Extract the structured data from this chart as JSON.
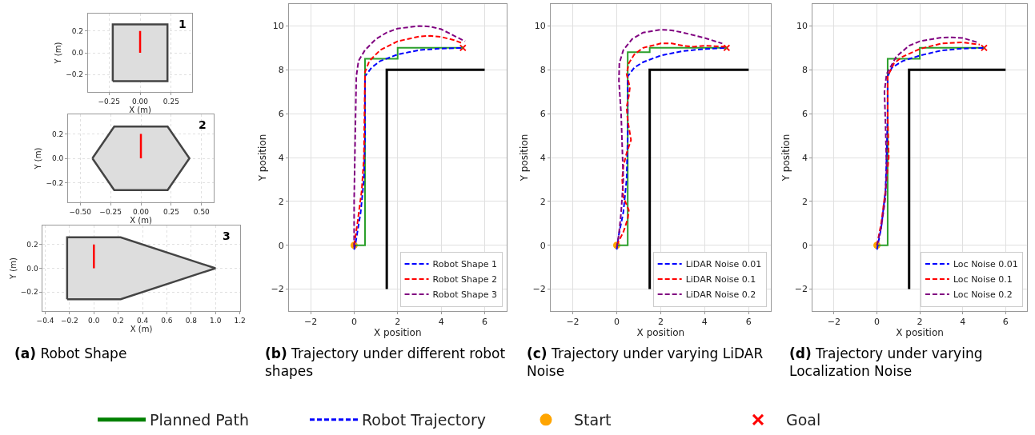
{
  "chart_data": [
    {
      "type": "area",
      "annotations": [
        "1"
      ],
      "xlabel": "X (m)",
      "ylabel": "Y (m)",
      "grid": true,
      "xlim": [
        -0.42,
        0.42
      ],
      "ylim": [
        -0.36,
        0.36
      ],
      "xticks": [
        {
          "value": -0.25,
          "label": "−0.25"
        },
        {
          "value": 0,
          "label": "0.00"
        },
        {
          "value": 0.25,
          "label": "0.25"
        }
      ],
      "yticks": [
        {
          "value": -0.2,
          "label": "−0.2"
        },
        {
          "value": 0,
          "label": "0.0"
        },
        {
          "value": 0.2,
          "label": "0.2"
        }
      ],
      "series": [
        {
          "color": "#444444",
          "x": [
            -0.22,
            -0.22,
            0.22,
            0.22,
            -0.22
          ],
          "values": [
            -0.26,
            0.26,
            0.26,
            -0.26,
            -0.26
          ]
        },
        {
          "type": "line",
          "color": "#ff0000",
          "x": [
            0,
            0
          ],
          "values": [
            0,
            0.2
          ]
        }
      ]
    },
    {
      "type": "area",
      "annotations": [
        "2"
      ],
      "xlabel": "X (m)",
      "ylabel": "Y (m)",
      "grid": true,
      "xlim": [
        -0.6,
        0.6
      ],
      "ylim": [
        -0.36,
        0.36
      ],
      "xticks": [
        {
          "value": -0.5,
          "label": "−0.50"
        },
        {
          "value": -0.25,
          "label": "−0.25"
        },
        {
          "value": 0,
          "label": "0.00"
        },
        {
          "value": 0.25,
          "label": "0.25"
        },
        {
          "value": 0.5,
          "label": "0.50"
        }
      ],
      "yticks": [
        {
          "value": -0.2,
          "label": "−0.2"
        },
        {
          "value": 0,
          "label": "0.0"
        },
        {
          "value": 0.2,
          "label": "0.2"
        }
      ],
      "series": [
        {
          "color": "#444444",
          "x": [
            -0.4,
            -0.22,
            0.22,
            0.4,
            0.22,
            -0.22,
            -0.4
          ],
          "values": [
            0,
            0.26,
            0.26,
            0,
            -0.26,
            -0.26,
            0
          ]
        },
        {
          "type": "line",
          "color": "#ff0000",
          "x": [
            0,
            0
          ],
          "values": [
            0,
            0.2
          ]
        }
      ]
    },
    {
      "type": "area",
      "title": "(a) Robot Shape",
      "annotations": [
        "3"
      ],
      "xlabel": "X (m)",
      "ylabel": "Y (m)",
      "grid": true,
      "xlim": [
        -0.42,
        1.2
      ],
      "ylim": [
        -0.36,
        0.36
      ],
      "xticks": [
        {
          "value": -0.4,
          "label": "−0.4"
        },
        {
          "value": -0.2,
          "label": "−0.2"
        },
        {
          "value": 0,
          "label": "0.0"
        },
        {
          "value": 0.2,
          "label": "0.2"
        },
        {
          "value": 0.4,
          "label": "0.4"
        },
        {
          "value": 0.6,
          "label": "0.6"
        },
        {
          "value": 0.8,
          "label": "0.8"
        },
        {
          "value": 1.0,
          "label": "1.0"
        },
        {
          "value": 1.2,
          "label": "1.2"
        }
      ],
      "yticks": [
        {
          "value": -0.2,
          "label": "−0.2"
        },
        {
          "value": 0,
          "label": "0.0"
        },
        {
          "value": 0.2,
          "label": "0.2"
        }
      ],
      "series": [
        {
          "color": "#444444",
          "x": [
            -0.22,
            -0.22,
            0.22,
            1.0,
            0.22,
            -0.22
          ],
          "values": [
            -0.26,
            0.26,
            0.26,
            0,
            -0.26,
            -0.26
          ]
        },
        {
          "type": "line",
          "color": "#ff0000",
          "x": [
            0,
            0
          ],
          "values": [
            0,
            0.2
          ]
        }
      ]
    },
    {
      "type": "line",
      "title": "(b) Trajectory under different robot shapes",
      "xlabel": "X position",
      "ylabel": "Y position",
      "grid": true,
      "legend": "bottom right",
      "xlim": [
        -3,
        7
      ],
      "ylim": [
        -3,
        11
      ],
      "xticks": [
        {
          "value": -2,
          "label": "−2"
        },
        0,
        2,
        4,
        6
      ],
      "yticks": [
        {
          "value": -2,
          "label": "−2"
        },
        0,
        2,
        4,
        6,
        8,
        10
      ],
      "series": [
        {
          "color": "#000000",
          "x": [
            1.5,
            1.5,
            6
          ],
          "values": [
            -2,
            8,
            8
          ]
        },
        {
          "color": "#2ca02c",
          "x": [
            0,
            0.5,
            0.5,
            2,
            2,
            5
          ],
          "values": [
            0,
            0,
            8.5,
            8.5,
            9,
            9
          ]
        },
        {
          "name": "Robot Shape 1",
          "color": "#0000ff",
          "line_style": "dashed",
          "x": [
            0,
            0.05,
            0.3,
            0.45,
            0.5,
            0.5,
            0.8,
            1.2,
            2,
            3,
            4,
            5
          ],
          "values": [
            -0.2,
            0,
            1.5,
            3,
            5,
            7.7,
            8.1,
            8.4,
            8.7,
            8.9,
            8.97,
            9
          ]
        },
        {
          "name": "Robot Shape 2",
          "color": "#ff0000",
          "line_style": "dashed",
          "x": [
            0,
            0.15,
            0.35,
            0.45,
            0.5,
            0.7,
            1.2,
            2,
            3,
            3.5,
            4,
            4.6,
            5
          ],
          "values": [
            0,
            1,
            2.5,
            4,
            7.9,
            8.4,
            8.9,
            9.3,
            9.52,
            9.55,
            9.5,
            9.35,
            9.2
          ]
        },
        {
          "name": "Robot Shape 3",
          "color": "#800080",
          "line_style": "dashed",
          "x": [
            0,
            0,
            0.05,
            0.1,
            0.2,
            0.5,
            1,
            1.5,
            2,
            3,
            3.5,
            4,
            4.5,
            5.1
          ],
          "values": [
            -0.1,
            2,
            5,
            7.7,
            8.4,
            8.9,
            9.4,
            9.7,
            9.88,
            10,
            9.97,
            9.85,
            9.6,
            9.3
          ]
        },
        {
          "type": "scatter",
          "marker": "circle",
          "color": "#ffa500",
          "x": [
            0
          ],
          "values": [
            0
          ]
        },
        {
          "type": "scatter",
          "marker": "cross",
          "color": "#ff0000",
          "x": [
            5
          ],
          "values": [
            9
          ]
        }
      ]
    },
    {
      "type": "line",
      "title": "(c) Trajectory under varying LiDAR Noise",
      "xlabel": "X position",
      "ylabel": "Y position",
      "grid": true,
      "legend": "bottom right",
      "xlim": [
        -3,
        7
      ],
      "ylim": [
        -3,
        11
      ],
      "xticks": [
        {
          "value": -2,
          "label": "−2"
        },
        0,
        2,
        4,
        6
      ],
      "yticks": [
        {
          "value": -2,
          "label": "−2"
        },
        0,
        2,
        4,
        6,
        8,
        10
      ],
      "series": [
        {
          "color": "#000000",
          "x": [
            1.5,
            1.5,
            6
          ],
          "values": [
            -2,
            8,
            8
          ]
        },
        {
          "color": "#2ca02c",
          "x": [
            0,
            0.5,
            0.5,
            1.5,
            1.5,
            5
          ],
          "values": [
            0,
            0,
            8.8,
            8.8,
            9,
            9
          ]
        },
        {
          "name": "LiDAR Noise 0.01",
          "color": "#0000ff",
          "line_style": "dashed",
          "x": [
            0,
            0.1,
            0.3,
            0.45,
            0.5,
            0.5,
            0.8,
            1.2,
            2,
            3,
            4,
            5
          ],
          "values": [
            -0.2,
            0.5,
            1.5,
            3,
            5,
            7.7,
            8.1,
            8.35,
            8.65,
            8.85,
            8.95,
            9
          ]
        },
        {
          "name": "LiDAR Noise 0.1",
          "color": "#ff0000",
          "line_style": "dashed",
          "x": [
            0,
            0.3,
            0.5,
            0.55,
            0.3,
            0.25,
            0.3,
            0.45,
            0.65,
            0.5,
            0.45,
            0.55,
            0.6,
            0.45,
            0.55,
            0.8,
            1.2,
            2,
            2.5,
            3,
            3.5,
            4,
            5
          ],
          "values": [
            0,
            0.6,
            1.2,
            1.6,
            2.2,
            3,
            3.6,
            4.2,
            4.8,
            5.7,
            6.3,
            6.8,
            7.2,
            7.8,
            8.3,
            8.7,
            9,
            9.2,
            9.2,
            9.1,
            9.05,
            9.1,
            9.05
          ]
        },
        {
          "name": "LiDAR Noise 0.2",
          "color": "#800080",
          "line_style": "dashed",
          "x": [
            0,
            0.1,
            0.2,
            0.3,
            0.25,
            0.2,
            0.1,
            0.12,
            0.3,
            0.7,
            1.2,
            2,
            2.5,
            3,
            4,
            4.8
          ],
          "values": [
            -0.1,
            0.5,
            1.5,
            3,
            4.5,
            6,
            7.5,
            8.3,
            8.9,
            9.4,
            9.7,
            9.83,
            9.8,
            9.7,
            9.45,
            9.2
          ]
        },
        {
          "type": "scatter",
          "marker": "circle",
          "color": "#ffa500",
          "x": [
            0
          ],
          "values": [
            0
          ]
        },
        {
          "type": "scatter",
          "marker": "cross",
          "color": "#ff0000",
          "x": [
            5
          ],
          "values": [
            9
          ]
        }
      ]
    },
    {
      "type": "line",
      "title": "(d) Trajectory under varying Localization Noise",
      "xlabel": "X position",
      "ylabel": "Y position",
      "grid": true,
      "legend": "bottom right",
      "xlim": [
        -3,
        7
      ],
      "ylim": [
        -3,
        11
      ],
      "xticks": [
        {
          "value": -2,
          "label": "−2"
        },
        0,
        2,
        4,
        6
      ],
      "yticks": [
        {
          "value": -2,
          "label": "−2"
        },
        0,
        2,
        4,
        6,
        8,
        10
      ],
      "series": [
        {
          "color": "#000000",
          "x": [
            1.5,
            1.5,
            6
          ],
          "values": [
            -2,
            8,
            8
          ]
        },
        {
          "color": "#2ca02c",
          "x": [
            0,
            0.5,
            0.5,
            2,
            2,
            5
          ],
          "values": [
            0,
            0,
            8.5,
            8.5,
            9,
            9
          ]
        },
        {
          "name": "Loc Noise 0.01",
          "color": "#0000ff",
          "line_style": "dashed",
          "x": [
            0,
            0.2,
            0.4,
            0.45,
            0.5,
            0.5,
            0.7,
            1.2,
            2,
            3,
            4,
            5
          ],
          "values": [
            -0.2,
            0.8,
            2.5,
            4,
            6,
            7.7,
            8.1,
            8.4,
            8.65,
            8.88,
            8.97,
            9
          ]
        },
        {
          "name": "Loc Noise 0.1",
          "color": "#ff0000",
          "line_style": "dashed",
          "x": [
            0,
            0.2,
            0.4,
            0.55,
            0.5,
            0.5,
            0.8,
            1.2,
            2,
            3,
            4,
            4.8
          ],
          "values": [
            0,
            1,
            2.5,
            4,
            6,
            7.7,
            8.3,
            8.6,
            8.95,
            9.2,
            9.25,
            9.15
          ]
        },
        {
          "name": "Loc Noise 0.2",
          "color": "#800080",
          "line_style": "dashed",
          "x": [
            0,
            0.2,
            0.4,
            0.45,
            0.4,
            0.35,
            0.45,
            0.9,
            1.5,
            2,
            3,
            3.5,
            4,
            4.7
          ],
          "values": [
            0,
            0.8,
            2.2,
            3.5,
            5.5,
            7,
            7.8,
            8.6,
            9.1,
            9.3,
            9.47,
            9.48,
            9.45,
            9.25
          ]
        },
        {
          "type": "scatter",
          "marker": "circle",
          "color": "#ffa500",
          "x": [
            0
          ],
          "values": [
            0
          ]
        },
        {
          "type": "scatter",
          "marker": "cross",
          "color": "#ff0000",
          "x": [
            5
          ],
          "values": [
            9
          ]
        }
      ]
    },
    {
      "type": "other",
      "legend": "bottom",
      "series": [
        {
          "name": "Planned Path",
          "type": "line",
          "color": "#008000"
        },
        {
          "name": "Robot Trajectory",
          "type": "line",
          "line_style": "dashed",
          "color": "#0000ff"
        },
        {
          "name": "Start",
          "type": "scatter",
          "marker": "circle",
          "color": "#ffa500"
        },
        {
          "name": "Goal",
          "type": "scatter",
          "marker": "cross",
          "color": "#ff0000"
        }
      ]
    }
  ]
}
